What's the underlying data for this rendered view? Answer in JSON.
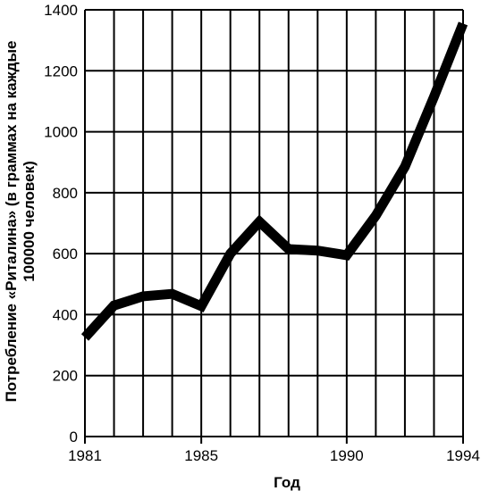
{
  "chart_data": {
    "type": "line",
    "title": "",
    "xlabel": "Год",
    "ylabel_lines": [
      "Потребление «Риталина» (в граммах на каждые",
      "100000 человек)"
    ],
    "x": [
      1981,
      1982,
      1983,
      1984,
      1985,
      1986,
      1987,
      1988,
      1989,
      1990,
      1991,
      1992,
      1993,
      1994
    ],
    "series": [
      {
        "values": [
          325,
          430,
          460,
          468,
          428,
          600,
          705,
          615,
          610,
          595,
          725,
          885,
          1115,
          1355
        ]
      }
    ],
    "xlim": [
      1981,
      1994
    ],
    "ylim": [
      0,
      1400
    ],
    "x_ticks": [
      1981,
      1985,
      1990,
      1994
    ],
    "y_ticks": [
      0,
      200,
      400,
      600,
      800,
      1000,
      1200,
      1400
    ],
    "grid": true,
    "line_color": "#000000"
  }
}
